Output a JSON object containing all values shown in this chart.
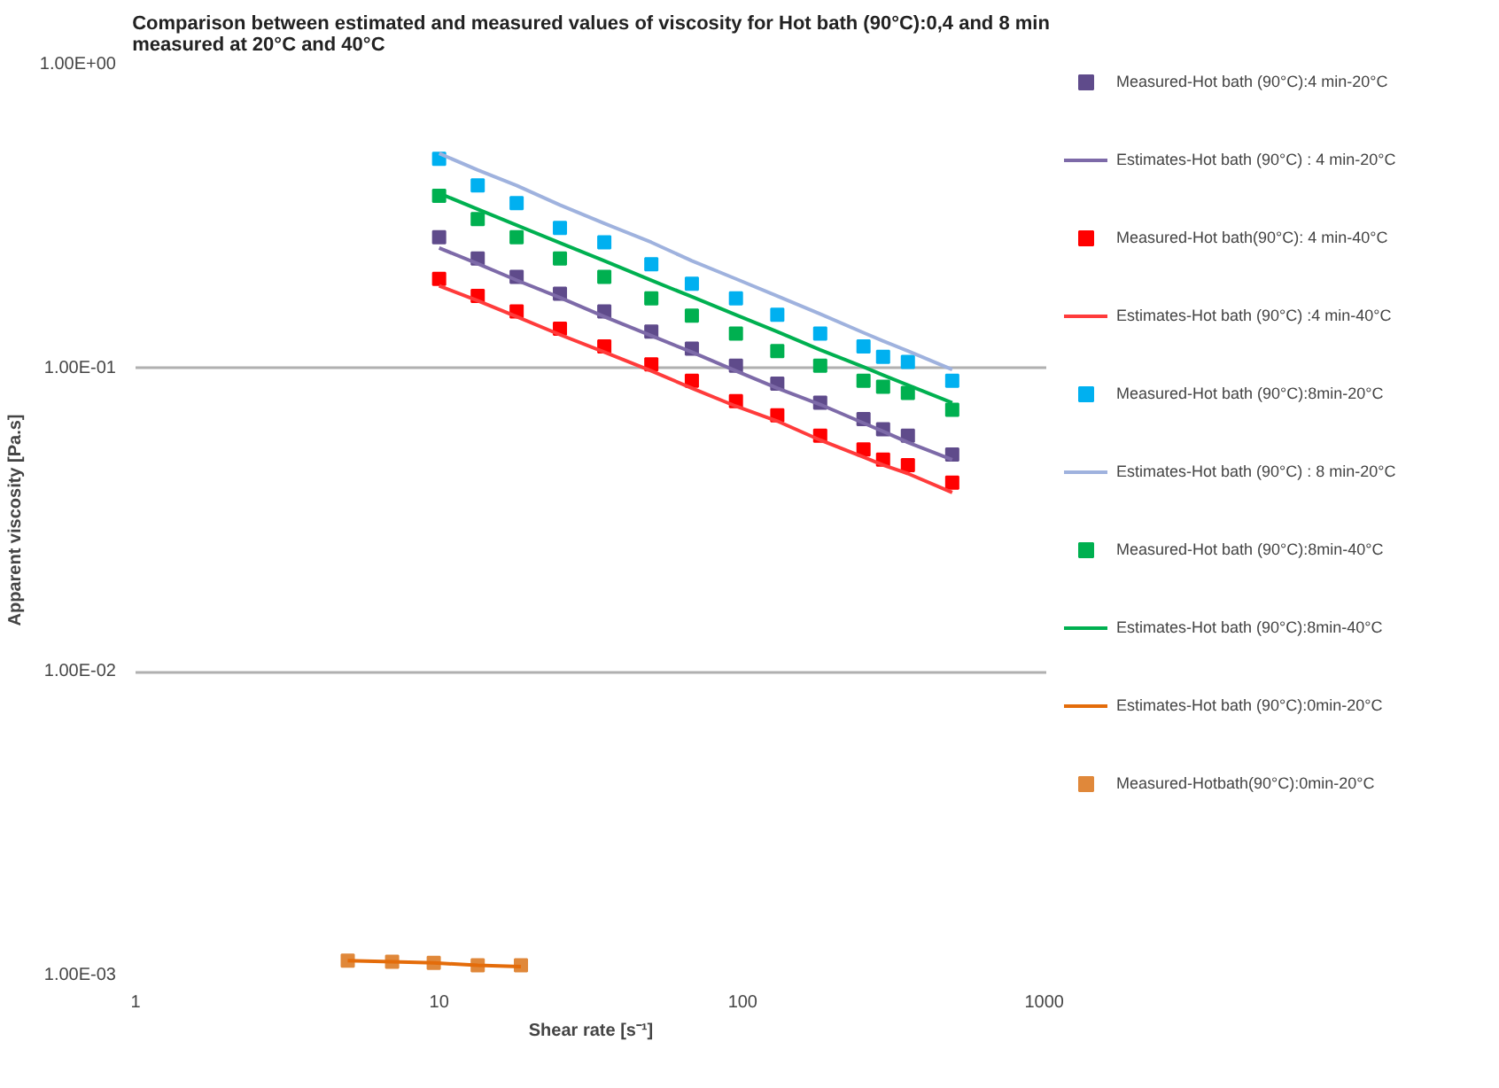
{
  "chart_data": {
    "type": "line",
    "title": "Comparison between estimated and measured values of viscosity for Hot bath (90°C):0,4 and 8 min\nmeasured at 20°C and 40°C",
    "xlabel": "Shear rate [s⁻¹]",
    "ylabel": "Apparent viscosity [Pa.s]",
    "log": "xy",
    "grid": "y",
    "legend": "right",
    "xlim": [
      1,
      1000
    ],
    "xticks": [
      1,
      10,
      100,
      1000
    ],
    "ylim": [
      0.001,
      1
    ],
    "yticks": [
      {
        "value": 0.001,
        "label": "1.00E-03"
      },
      {
        "value": 0.01,
        "label": "1.00E-02"
      },
      {
        "value": 0.1,
        "label": "1.00E-01"
      },
      {
        "value": 1,
        "label": "1.00E+00"
      }
    ],
    "x": [
      10,
      13.4,
      18,
      25,
      35,
      50,
      68,
      95,
      130,
      180,
      250,
      290,
      350,
      490
    ],
    "series": [
      {
        "name": "Measured-Hot bath (90°C):4 min-20°C",
        "type": "scatter",
        "marker": "square",
        "color": "#5f4b8b",
        "values": [
          0.27,
          0.23,
          0.2,
          0.176,
          0.154,
          0.132,
          0.116,
          0.102,
          0.089,
          0.077,
          0.068,
          0.063,
          0.06,
          0.052
        ]
      },
      {
        "name": "Estimates-Hot bath (90°C) : 4 min-20°C",
        "color": "#7d6aa8",
        "values": [
          0.249,
          0.221,
          0.195,
          0.171,
          0.148,
          0.128,
          0.113,
          0.098,
          0.086,
          0.076,
          0.066,
          0.062,
          0.057,
          0.05
        ]
      },
      {
        "name": "Measured-Hot bath(90°C): 4 min-40°C",
        "type": "scatter",
        "marker": "square",
        "color": "#ff0000",
        "values": [
          0.197,
          0.173,
          0.154,
          0.135,
          0.118,
          0.103,
          0.091,
          0.078,
          0.07,
          0.06,
          0.054,
          0.05,
          0.048,
          0.042
        ]
      },
      {
        "name": "Estimates-Hot bath (90°C) :4 min-40°C",
        "color": "#ff3b3b",
        "values": [
          0.187,
          0.167,
          0.148,
          0.129,
          0.113,
          0.098,
          0.086,
          0.075,
          0.067,
          0.058,
          0.051,
          0.048,
          0.045,
          0.039
        ]
      },
      {
        "name": "Measured-Hot bath (90°C):8min-20°C",
        "type": "scatter",
        "marker": "square",
        "color": "#00b0f0",
        "values": [
          0.49,
          0.4,
          0.35,
          0.29,
          0.26,
          0.22,
          0.19,
          0.17,
          0.15,
          0.13,
          0.118,
          0.109,
          0.105,
          0.091
        ]
      },
      {
        "name": "Estimates-Hot bath (90°C) : 8 min-20°C",
        "color": "#9fb2de",
        "values": [
          0.51,
          0.45,
          0.4,
          0.345,
          0.3,
          0.26,
          0.226,
          0.197,
          0.173,
          0.151,
          0.131,
          0.123,
          0.114,
          0.099
        ]
      },
      {
        "name": "Measured-Hot bath (90°C):8min-40°C",
        "type": "scatter",
        "marker": "square",
        "color": "#00b050",
        "values": [
          0.37,
          0.31,
          0.27,
          0.23,
          0.2,
          0.17,
          0.149,
          0.13,
          0.114,
          0.102,
          0.091,
          0.087,
          0.083,
          0.073
        ]
      },
      {
        "name": "Estimates-Hot bath (90°C):8min-40°C",
        "color": "#00b050",
        "values": [
          0.377,
          0.334,
          0.296,
          0.259,
          0.226,
          0.195,
          0.172,
          0.15,
          0.132,
          0.115,
          0.101,
          0.095,
          0.088,
          0.077
        ]
      },
      {
        "name": "Estimates-Hot bath (90°C):0min-20°C",
        "color": "#e46c0a",
        "x": [
          5,
          7,
          9.6,
          13.4,
          18.6
        ],
        "values": [
          0.00112,
          0.00111,
          0.0011,
          0.00108,
          0.00107
        ]
      },
      {
        "name": "Measured-Hotbath(90°C):0min-20°C",
        "type": "scatter",
        "marker": "square",
        "color": "#e0883a",
        "x": [
          5,
          7,
          9.6,
          13.4,
          18.6
        ],
        "values": [
          0.00112,
          0.00111,
          0.0011,
          0.00108,
          0.00108
        ]
      }
    ]
  }
}
